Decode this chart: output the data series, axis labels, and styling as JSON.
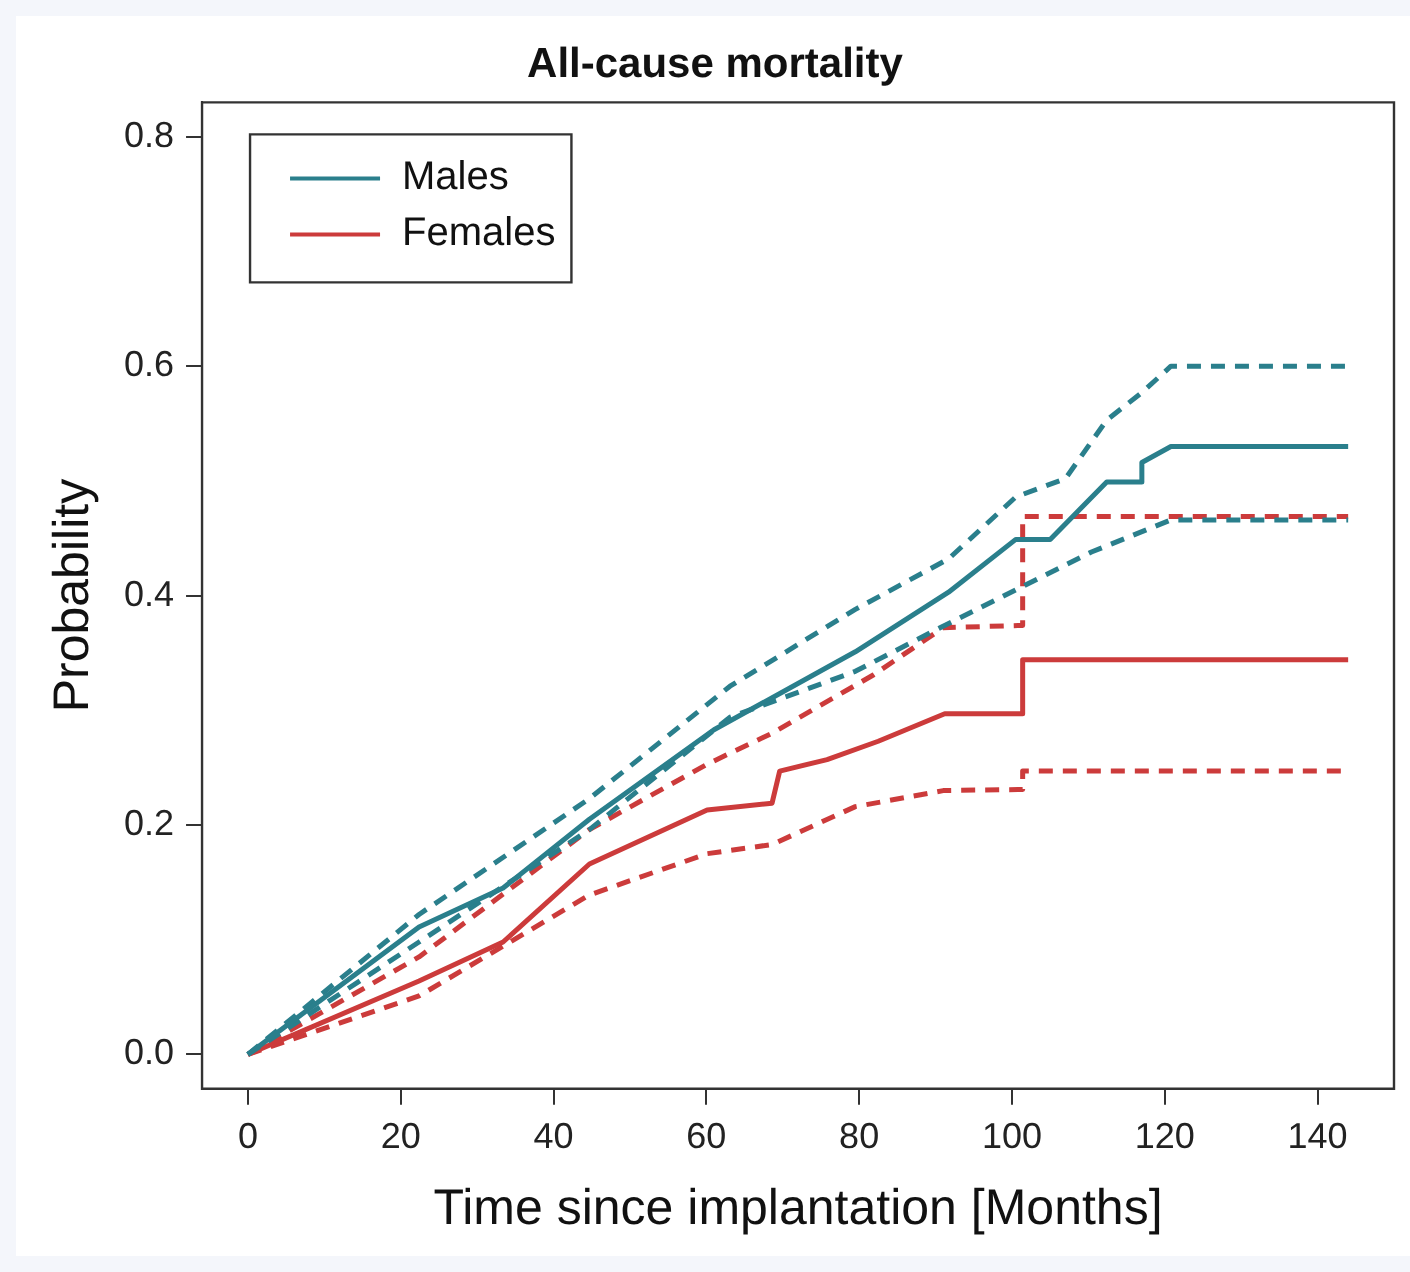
{
  "chart_data": {
    "type": "line",
    "title": "All-cause mortality",
    "xlabel": "Time since implantation [Months]",
    "ylabel": "Probability",
    "xlim": [
      -6,
      150
    ],
    "xticks": [
      0,
      20,
      40,
      60,
      80,
      100,
      120,
      140
    ],
    "ylim": [
      -0.03,
      0.83
    ],
    "yticks": [
      {
        "value": 0,
        "label": "0.0"
      },
      {
        "value": 0.2,
        "label": "0.2"
      },
      {
        "value": 0.4,
        "label": "0.4"
      },
      {
        "value": 0.6,
        "label": "0.6"
      },
      {
        "value": 0.8,
        "label": "0.8"
      }
    ],
    "grid": false,
    "legend": "top left",
    "marker": "none",
    "series": [
      {
        "name": "Males",
        "color": "#2a7f8c",
        "line_style": "solid",
        "x": [
          0,
          22.4,
          33.4,
          44.7,
          61,
          79.5,
          91.7,
          100.5,
          105,
          112.4,
          117,
          117,
          120.8,
          144
        ],
        "values": [
          0,
          0.111,
          0.145,
          0.205,
          0.283,
          0.351,
          0.403,
          0.449,
          0.449,
          0.499,
          0.499,
          0.516,
          0.53,
          0.53
        ]
      },
      {
        "color": "#2a7f8c",
        "line_style": "dashed",
        "x": [
          0,
          22.4,
          44.7,
          63.1,
          79.5,
          91.7,
          100.5,
          107,
          112.4,
          117,
          120.8,
          144
        ],
        "values": [
          0,
          0.122,
          0.223,
          0.321,
          0.388,
          0.432,
          0.486,
          0.502,
          0.553,
          0.577,
          0.6,
          0.6
        ]
      },
      {
        "color": "#2a7f8c",
        "line_style": "dashed",
        "x": [
          0,
          22.4,
          44.7,
          63.1,
          79.5,
          90.6,
          100.5,
          110.4,
          120.8,
          144
        ],
        "values": [
          0,
          0.098,
          0.196,
          0.294,
          0.334,
          0.372,
          0.405,
          0.438,
          0.466,
          0.466
        ]
      },
      {
        "name": "Females",
        "color": "#cc3b3b",
        "line_style": "solid",
        "x": [
          0,
          22.4,
          33.4,
          44.7,
          60.1,
          68.6,
          69.6,
          75.8,
          82.5,
          91.2,
          101.4,
          101.4,
          144
        ],
        "values": [
          0,
          0.064,
          0.098,
          0.166,
          0.213,
          0.219,
          0.247,
          0.257,
          0.273,
          0.297,
          0.297,
          0.344,
          0.344
        ]
      },
      {
        "color": "#cc3b3b",
        "line_style": "dashed",
        "x": [
          0,
          22.4,
          44.7,
          60.1,
          68.6,
          81.9,
          91,
          101.4,
          101.4,
          144
        ],
        "values": [
          0,
          0.085,
          0.196,
          0.253,
          0.28,
          0.331,
          0.372,
          0.374,
          0.469,
          0.469
        ]
      },
      {
        "color": "#cc3b3b",
        "line_style": "dashed",
        "x": [
          0,
          22.4,
          44.7,
          60.1,
          68.6,
          79.5,
          91,
          101.4,
          101.4,
          144
        ],
        "values": [
          0,
          0.051,
          0.139,
          0.175,
          0.183,
          0.216,
          0.23,
          0.231,
          0.247,
          0.247
        ]
      }
    ]
  }
}
